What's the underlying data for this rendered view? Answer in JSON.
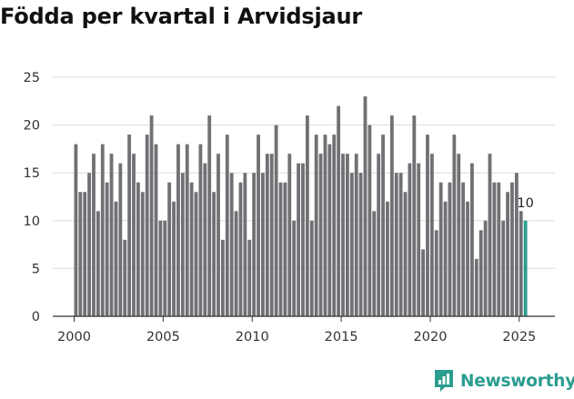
{
  "chart_data": {
    "type": "bar",
    "title": "Födda per kvartal i Arvidsjaur",
    "xlabel": "",
    "ylabel": "",
    "x_start": 2000.0,
    "x_step": 0.25,
    "xlim": [
      1998.8,
      2027.0
    ],
    "xticks": [
      2000,
      2005,
      2010,
      2015,
      2020,
      2025
    ],
    "ylim": [
      0,
      25
    ],
    "yticks": [
      0,
      5,
      10,
      15,
      20,
      25
    ],
    "grid": true,
    "values": [
      18,
      13,
      13,
      15,
      17,
      11,
      18,
      14,
      17,
      12,
      16,
      8,
      19,
      17,
      14,
      13,
      19,
      21,
      18,
      10,
      10,
      14,
      12,
      18,
      15,
      18,
      14,
      13,
      18,
      16,
      21,
      13,
      17,
      8,
      19,
      15,
      11,
      14,
      15,
      8,
      15,
      19,
      15,
      17,
      17,
      20,
      14,
      14,
      17,
      10,
      16,
      16,
      21,
      10,
      19,
      17,
      19,
      18,
      19,
      22,
      17,
      17,
      15,
      17,
      15,
      23,
      20,
      11,
      17,
      19,
      12,
      21,
      15,
      15,
      13,
      16,
      21,
      16,
      7,
      19,
      17,
      9,
      14,
      12,
      14,
      19,
      17,
      14,
      12,
      16,
      6,
      9,
      10,
      17,
      14,
      14,
      10,
      13,
      14,
      15,
      11,
      10
    ],
    "highlight_last": true,
    "last_value_label": "10",
    "colors": {
      "bar": "#717074",
      "highlight": "#2a9d8f",
      "grid": "#dcdcdc",
      "axis": "#333333"
    }
  },
  "branding": {
    "name": "Newsworthy",
    "icon": "bar-chart-speech-icon",
    "color": "#2a9d8f"
  }
}
